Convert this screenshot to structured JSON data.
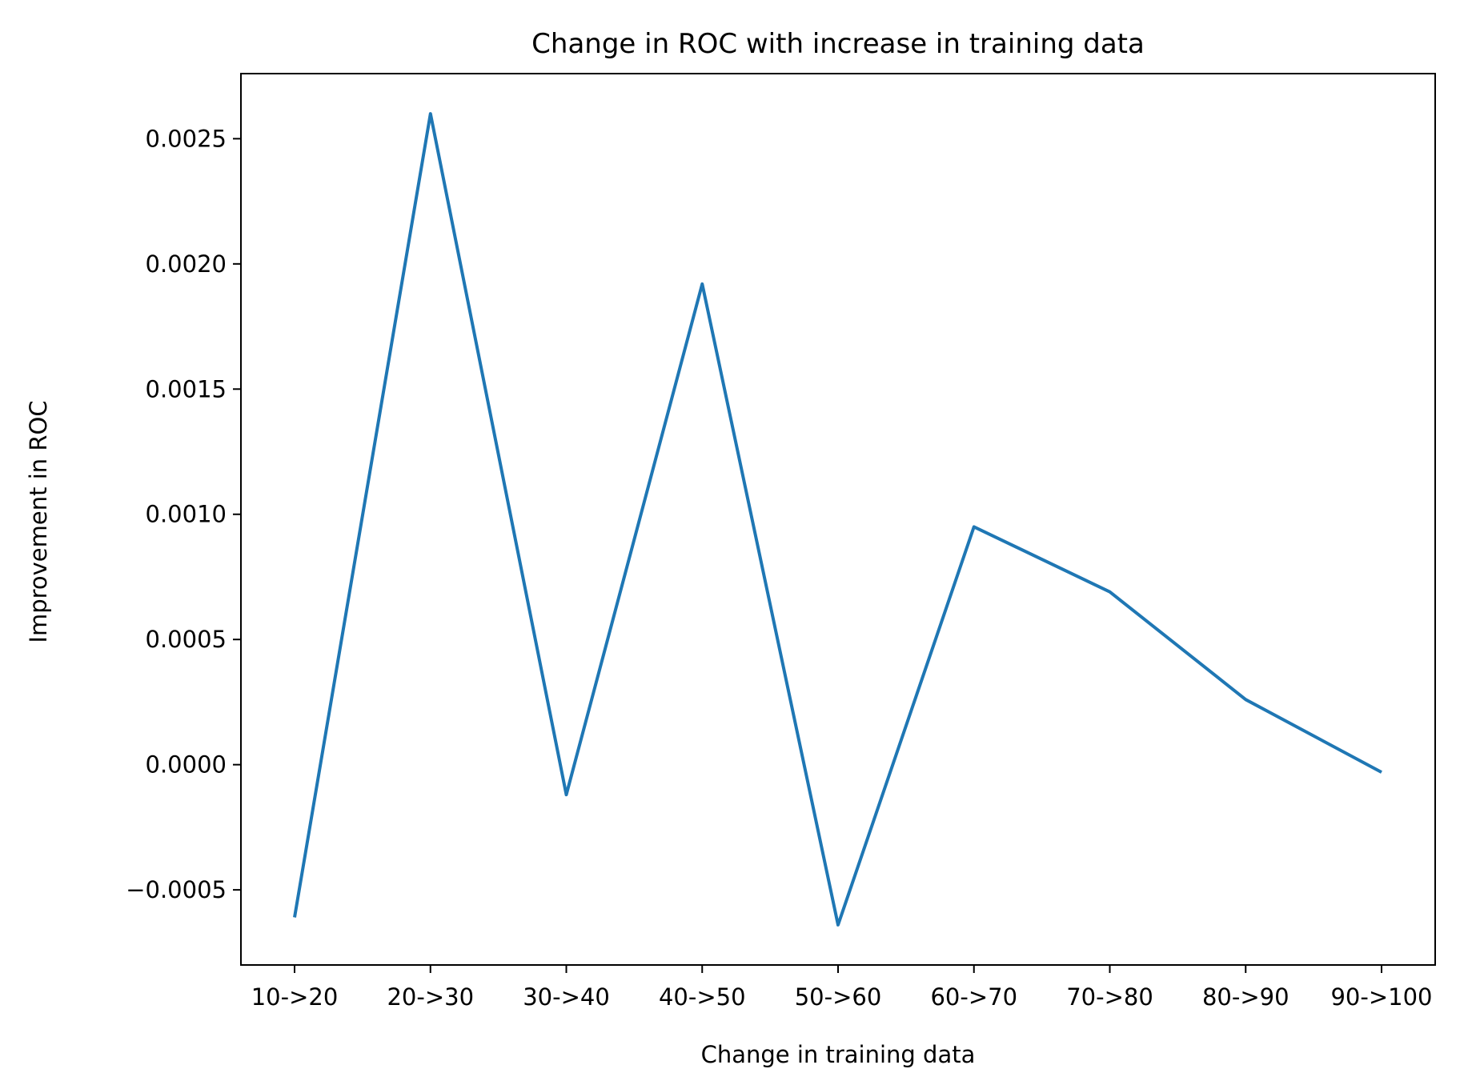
{
  "chart_data": {
    "type": "line",
    "title": "Change in ROC with increase in training data",
    "xlabel": "Change in training data",
    "ylabel": "Improvement in ROC",
    "categories": [
      "10->20",
      "20->30",
      "30->40",
      "40->50",
      "50->60",
      "60->70",
      "70->80",
      "80->90",
      "90->100"
    ],
    "series": [
      {
        "values": [
          -0.00061,
          0.0026,
          -0.00012,
          0.00192,
          -0.00064,
          0.00095,
          0.00069,
          0.00026,
          -3e-05
        ]
      }
    ],
    "yticks": [
      -0.0005,
      0.0,
      0.0005,
      0.001,
      0.0015,
      0.002,
      0.0025
    ],
    "ytick_labels": [
      "−0.0005",
      "0.0000",
      "0.0005",
      "0.0010",
      "0.0015",
      "0.0020",
      "0.0025"
    ],
    "ylim": [
      -0.0008,
      0.00276
    ],
    "grid": false,
    "line_color": "#1f77b4"
  }
}
